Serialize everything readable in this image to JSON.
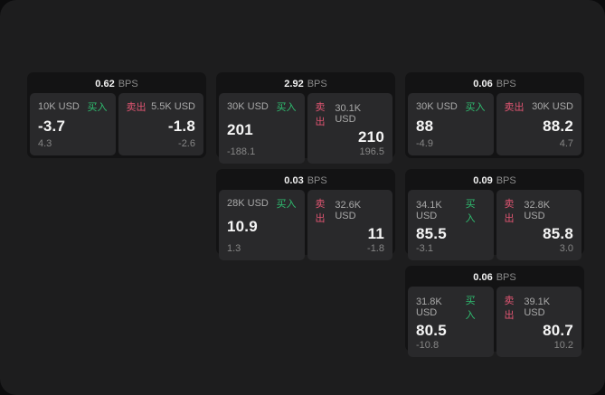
{
  "labels": {
    "bps_unit": "BPS",
    "buy": "买入",
    "sell": "卖出"
  },
  "colors": {
    "panel_bg": "#1d1d1e",
    "card_bg": "#131314",
    "tile_bg": "#29292b",
    "buy_green": "#2fbe70",
    "sell_red": "#e05572"
  },
  "cards": [
    {
      "bps": "0.62",
      "buy": {
        "size": "10K USD",
        "price": "-3.7",
        "delta": "4.3"
      },
      "sell": {
        "size": "5.5K USD",
        "price": "-1.8",
        "delta": "-2.6"
      }
    },
    {
      "bps": "2.92",
      "buy": {
        "size": "30K USD",
        "price": "201",
        "delta": "-188.1"
      },
      "sell": {
        "size": "30.1K USD",
        "price": "210",
        "delta": "196.5"
      }
    },
    {
      "bps": "0.06",
      "buy": {
        "size": "30K USD",
        "price": "88",
        "delta": "-4.9"
      },
      "sell": {
        "size": "30K USD",
        "price": "88.2",
        "delta": "4.7"
      }
    },
    {
      "bps": "0.03",
      "buy": {
        "size": "28K USD",
        "price": "10.9",
        "delta": "1.3"
      },
      "sell": {
        "size": "32.6K USD",
        "price": "11",
        "delta": "-1.8"
      }
    },
    {
      "bps": "0.09",
      "buy": {
        "size": "34.1K USD",
        "price": "85.5",
        "delta": "-3.1"
      },
      "sell": {
        "size": "32.8K USD",
        "price": "85.8",
        "delta": "3.0"
      }
    },
    {
      "bps": "0.06",
      "buy": {
        "size": "31.8K USD",
        "price": "80.5",
        "delta": "-10.8"
      },
      "sell": {
        "size": "39.1K USD",
        "price": "80.7",
        "delta": "10.2"
      }
    }
  ]
}
